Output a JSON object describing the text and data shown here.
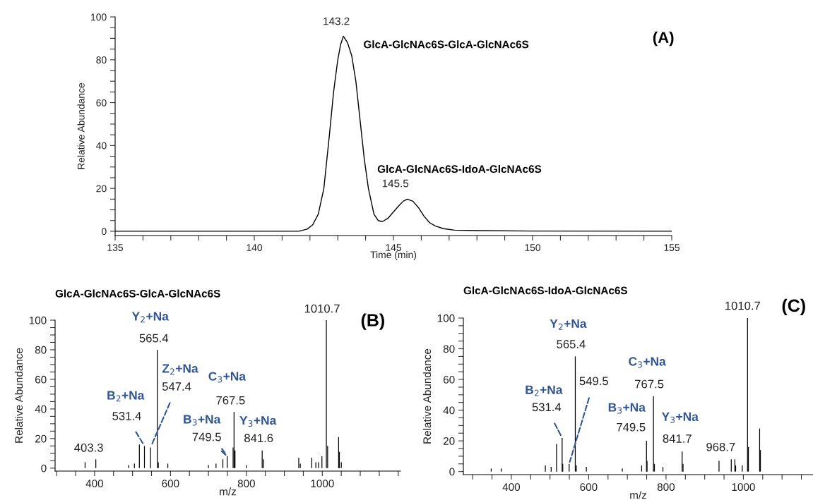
{
  "chart_data": [
    {
      "type": "line",
      "xlabel": "Time (min)",
      "ylabel": "Relative Abundance",
      "xlim": [
        135,
        155
      ],
      "ylim": [
        -2,
        100
      ],
      "xticks": [
        135,
        {
          "value": 136,
          "label": null
        },
        {
          "value": 137,
          "label": null
        },
        {
          "value": 138,
          "label": null
        },
        {
          "value": 139,
          "label": null
        },
        140,
        {
          "value": 141,
          "label": null
        },
        {
          "value": 142,
          "label": null
        },
        {
          "value": 143,
          "label": null
        },
        {
          "value": 144,
          "label": null
        },
        145,
        {
          "value": 146,
          "label": null
        },
        {
          "value": 147,
          "label": null
        },
        {
          "value": 148,
          "label": null
        },
        {
          "value": 149,
          "label": null
        },
        150,
        {
          "value": 151,
          "label": null
        },
        {
          "value": 152,
          "label": null
        },
        {
          "value": 153,
          "label": null
        },
        {
          "value": 154,
          "label": null
        },
        155
      ],
      "yticks": [
        0,
        {
          "value": 5,
          "label": null
        },
        {
          "value": 10,
          "label": null
        },
        {
          "value": 15,
          "label": null
        },
        20,
        {
          "value": 25,
          "label": null
        },
        {
          "value": 30,
          "label": null
        },
        {
          "value": 35,
          "label": null
        },
        40,
        {
          "value": 45,
          "label": null
        },
        {
          "value": 50,
          "label": null
        },
        {
          "value": 55,
          "label": null
        },
        60,
        {
          "value": 65,
          "label": null
        },
        {
          "value": 70,
          "label": null
        },
        {
          "value": 75,
          "label": null
        },
        80,
        {
          "value": 85,
          "label": null
        },
        {
          "value": 90,
          "label": null
        },
        {
          "value": 95,
          "label": null
        },
        100
      ],
      "series": [
        {
          "color": "#000000",
          "x": [
            135,
            141.6,
            141.9,
            142.1,
            142.3,
            142.5,
            142.7,
            142.85,
            143.0,
            143.1,
            143.2,
            143.35,
            143.5,
            143.65,
            143.8,
            143.95,
            144.1,
            144.3,
            144.45,
            144.6,
            144.8,
            145.0,
            145.2,
            145.35,
            145.5,
            145.7,
            145.9,
            146.1,
            146.3,
            146.5,
            146.8,
            147.2,
            148,
            150,
            155
          ],
          "values": [
            0,
            0,
            1,
            3,
            8,
            20,
            45,
            65,
            80,
            87,
            91,
            88,
            82,
            70,
            52,
            34,
            20,
            8,
            5,
            4.5,
            6,
            9,
            12,
            14,
            15,
            14,
            11,
            7,
            4,
            2.5,
            1.2,
            0.5,
            0.3,
            0.1,
            0
          ]
        }
      ],
      "annotations": [
        {
          "text": "143.2",
          "x": 143.2,
          "y": 91
        },
        {
          "text": "145.5",
          "x": 145.5,
          "y": 15
        },
        "GlcA-GlcNAc6S-GlcA-GlcNAc6S",
        "GlcA-GlcNAc6S-IdoA-GlcNAc6S",
        "(A)"
      ]
    },
    {
      "type": "bar",
      "title": "GlcA-GlcNAc6S-GlcA-GlcNAc6S",
      "xlabel": "m/z",
      "ylabel": "Relative Abundance",
      "xlim": [
        296,
        1206
      ],
      "ylim": [
        -2,
        100
      ],
      "xticks": [
        {
          "value": 300,
          "label": null
        },
        {
          "value": 350,
          "label": null
        },
        400,
        {
          "value": 450,
          "label": null
        },
        {
          "value": 500,
          "label": null
        },
        {
          "value": 550,
          "label": null
        },
        600,
        {
          "value": 650,
          "label": null
        },
        {
          "value": 700,
          "label": null
        },
        {
          "value": 750,
          "label": null
        },
        800,
        {
          "value": 850,
          "label": null
        },
        {
          "value": 900,
          "label": null
        },
        {
          "value": 950,
          "label": null
        },
        1000,
        {
          "value": 1050,
          "label": null
        },
        {
          "value": 1100,
          "label": null
        },
        {
          "value": 1150,
          "label": null
        },
        {
          "value": 1200,
          "label": null
        }
      ],
      "yticks": [
        0,
        {
          "value": 5,
          "label": null
        },
        {
          "value": 10,
          "label": null
        },
        {
          "value": 15,
          "label": null
        },
        20,
        {
          "value": 25,
          "label": null
        },
        {
          "value": 30,
          "label": null
        },
        {
          "value": 35,
          "label": null
        },
        40,
        {
          "value": 45,
          "label": null
        },
        {
          "value": 50,
          "label": null
        },
        {
          "value": 55,
          "label": null
        },
        60,
        {
          "value": 65,
          "label": null
        },
        {
          "value": 70,
          "label": null
        },
        {
          "value": 75,
          "label": null
        },
        80,
        {
          "value": 85,
          "label": null
        },
        {
          "value": 90,
          "label": null
        },
        {
          "value": 95,
          "label": null
        },
        100
      ],
      "series": [
        {
          "color": "#000000",
          "x": [
            375,
            403.3,
            490,
            505,
            518,
            531.4,
            547.4,
            565.4,
            568,
            593,
            700,
            720,
            738,
            749.5,
            765,
            767.5,
            770,
            800,
            841.6,
            845,
            938,
            942,
            972,
            983,
            990,
            999,
            1010.7,
            1014,
            1043,
            1045,
            1050
          ],
          "values": [
            4,
            6,
            2,
            3,
            16,
            15,
            14,
            80,
            4,
            3,
            2,
            3,
            6,
            8,
            14,
            38,
            12,
            2,
            12,
            6,
            7,
            3,
            7,
            4,
            4,
            8,
            100,
            15,
            21,
            11,
            4
          ]
        }
      ],
      "annotations": [
        {
          "text": "403.3",
          "x": 403.3,
          "y": 6
        },
        {
          "text": "531.4",
          "x": 531.4,
          "y": 15
        },
        {
          "text": "547.4",
          "x": 547.4,
          "y": 14
        },
        {
          "text": "565.4",
          "x": 565.4,
          "y": 80
        },
        {
          "text": "749.5",
          "x": 749.5,
          "y": 8
        },
        {
          "text": "767.5",
          "x": 767.5,
          "y": 38
        },
        {
          "text": "841.6",
          "x": 841.6,
          "y": 12
        },
        {
          "text": "1010.7",
          "x": 1010.7,
          "y": 100
        },
        {
          "text": "Y$_{2}$+Na",
          "x": 565.4,
          "y": 80
        },
        {
          "text": "C$_{3}$+Na",
          "x": 767.5,
          "y": 38
        },
        {
          "text": "B$_{3}$+Na",
          "x": 749.5,
          "y": 8
        },
        {
          "text": "Y$_{3}$+Na",
          "x": 841.6,
          "y": 12
        },
        "B$_{2}$+Na",
        "Z$_{2}$+Na",
        "(B)"
      ]
    },
    {
      "type": "bar",
      "title": "GlcA-GlcNAc6S-IdoA-GlcNAc6S",
      "xlabel": "m/z",
      "ylabel": "Relative Abundance",
      "xlim": [
        276,
        1180
      ],
      "ylim": [
        -2,
        100
      ],
      "xticks": [
        {
          "value": 300,
          "label": null
        },
        {
          "value": 350,
          "label": null
        },
        400,
        {
          "value": 450,
          "label": null
        },
        {
          "value": 500,
          "label": null
        },
        {
          "value": 550,
          "label": null
        },
        600,
        {
          "value": 650,
          "label": null
        },
        {
          "value": 700,
          "label": null
        },
        {
          "value": 750,
          "label": null
        },
        800,
        {
          "value": 850,
          "label": null
        },
        {
          "value": 900,
          "label": null
        },
        {
          "value": 950,
          "label": null
        },
        1000,
        {
          "value": 1050,
          "label": null
        },
        {
          "value": 1100,
          "label": null
        },
        {
          "value": 1150,
          "label": null
        }
      ],
      "yticks": [
        0,
        {
          "value": 5,
          "label": null
        },
        {
          "value": 10,
          "label": null
        },
        {
          "value": 15,
          "label": null
        },
        20,
        {
          "value": 25,
          "label": null
        },
        {
          "value": 30,
          "label": null
        },
        {
          "value": 35,
          "label": null
        },
        40,
        {
          "value": 45,
          "label": null
        },
        {
          "value": 50,
          "label": null
        },
        {
          "value": 55,
          "label": null
        },
        60,
        {
          "value": 65,
          "label": null
        },
        {
          "value": 70,
          "label": null
        },
        {
          "value": 75,
          "label": null
        },
        80,
        {
          "value": 85,
          "label": null
        },
        {
          "value": 90,
          "label": null
        },
        {
          "value": 95,
          "label": null
        },
        100
      ],
      "series": [
        {
          "color": "#000000",
          "x": [
            348,
            374,
            488,
            503,
            517,
            531.4,
            533,
            549.5,
            565.4,
            568,
            594,
            687,
            737,
            749.5,
            751,
            767.5,
            770,
            792,
            841.7,
            844,
            937,
            968.7,
            978,
            980,
            997,
            1010.7,
            1013,
            1042,
            1044
          ],
          "values": [
            2,
            2,
            4,
            3,
            18,
            22,
            5,
            5,
            75,
            4,
            3,
            2,
            4,
            20,
            7,
            49,
            5,
            3,
            13,
            5,
            7,
            8,
            8,
            4,
            4,
            100,
            16,
            28,
            14
          ]
        }
      ],
      "annotations": [
        {
          "text": "531.4",
          "x": 531.4,
          "y": 22
        },
        {
          "text": "549.5",
          "x": 549.5,
          "y": 5
        },
        {
          "text": "565.4",
          "x": 565.4,
          "y": 75
        },
        {
          "text": "749.5",
          "x": 749.5,
          "y": 20
        },
        {
          "text": "767.5",
          "x": 767.5,
          "y": 49
        },
        {
          "text": "841.7",
          "x": 841.7,
          "y": 13
        },
        {
          "text": "968.7",
          "x": 968.7,
          "y": 8
        },
        {
          "text": "1010.7",
          "x": 1010.7,
          "y": 100
        },
        {
          "text": "Y$_{2}$+Na",
          "x": 565.4,
          "y": 75
        },
        {
          "text": "C$_{3}$+Na",
          "x": 767.5,
          "y": 49
        },
        {
          "text": "B$_{3}$+Na",
          "x": 749.5,
          "y": 20
        },
        {
          "text": "Y$_{3}$+Na",
          "x": 841.7,
          "y": 13
        },
        "B$_{2}$+Na",
        "(C)"
      ]
    }
  ]
}
